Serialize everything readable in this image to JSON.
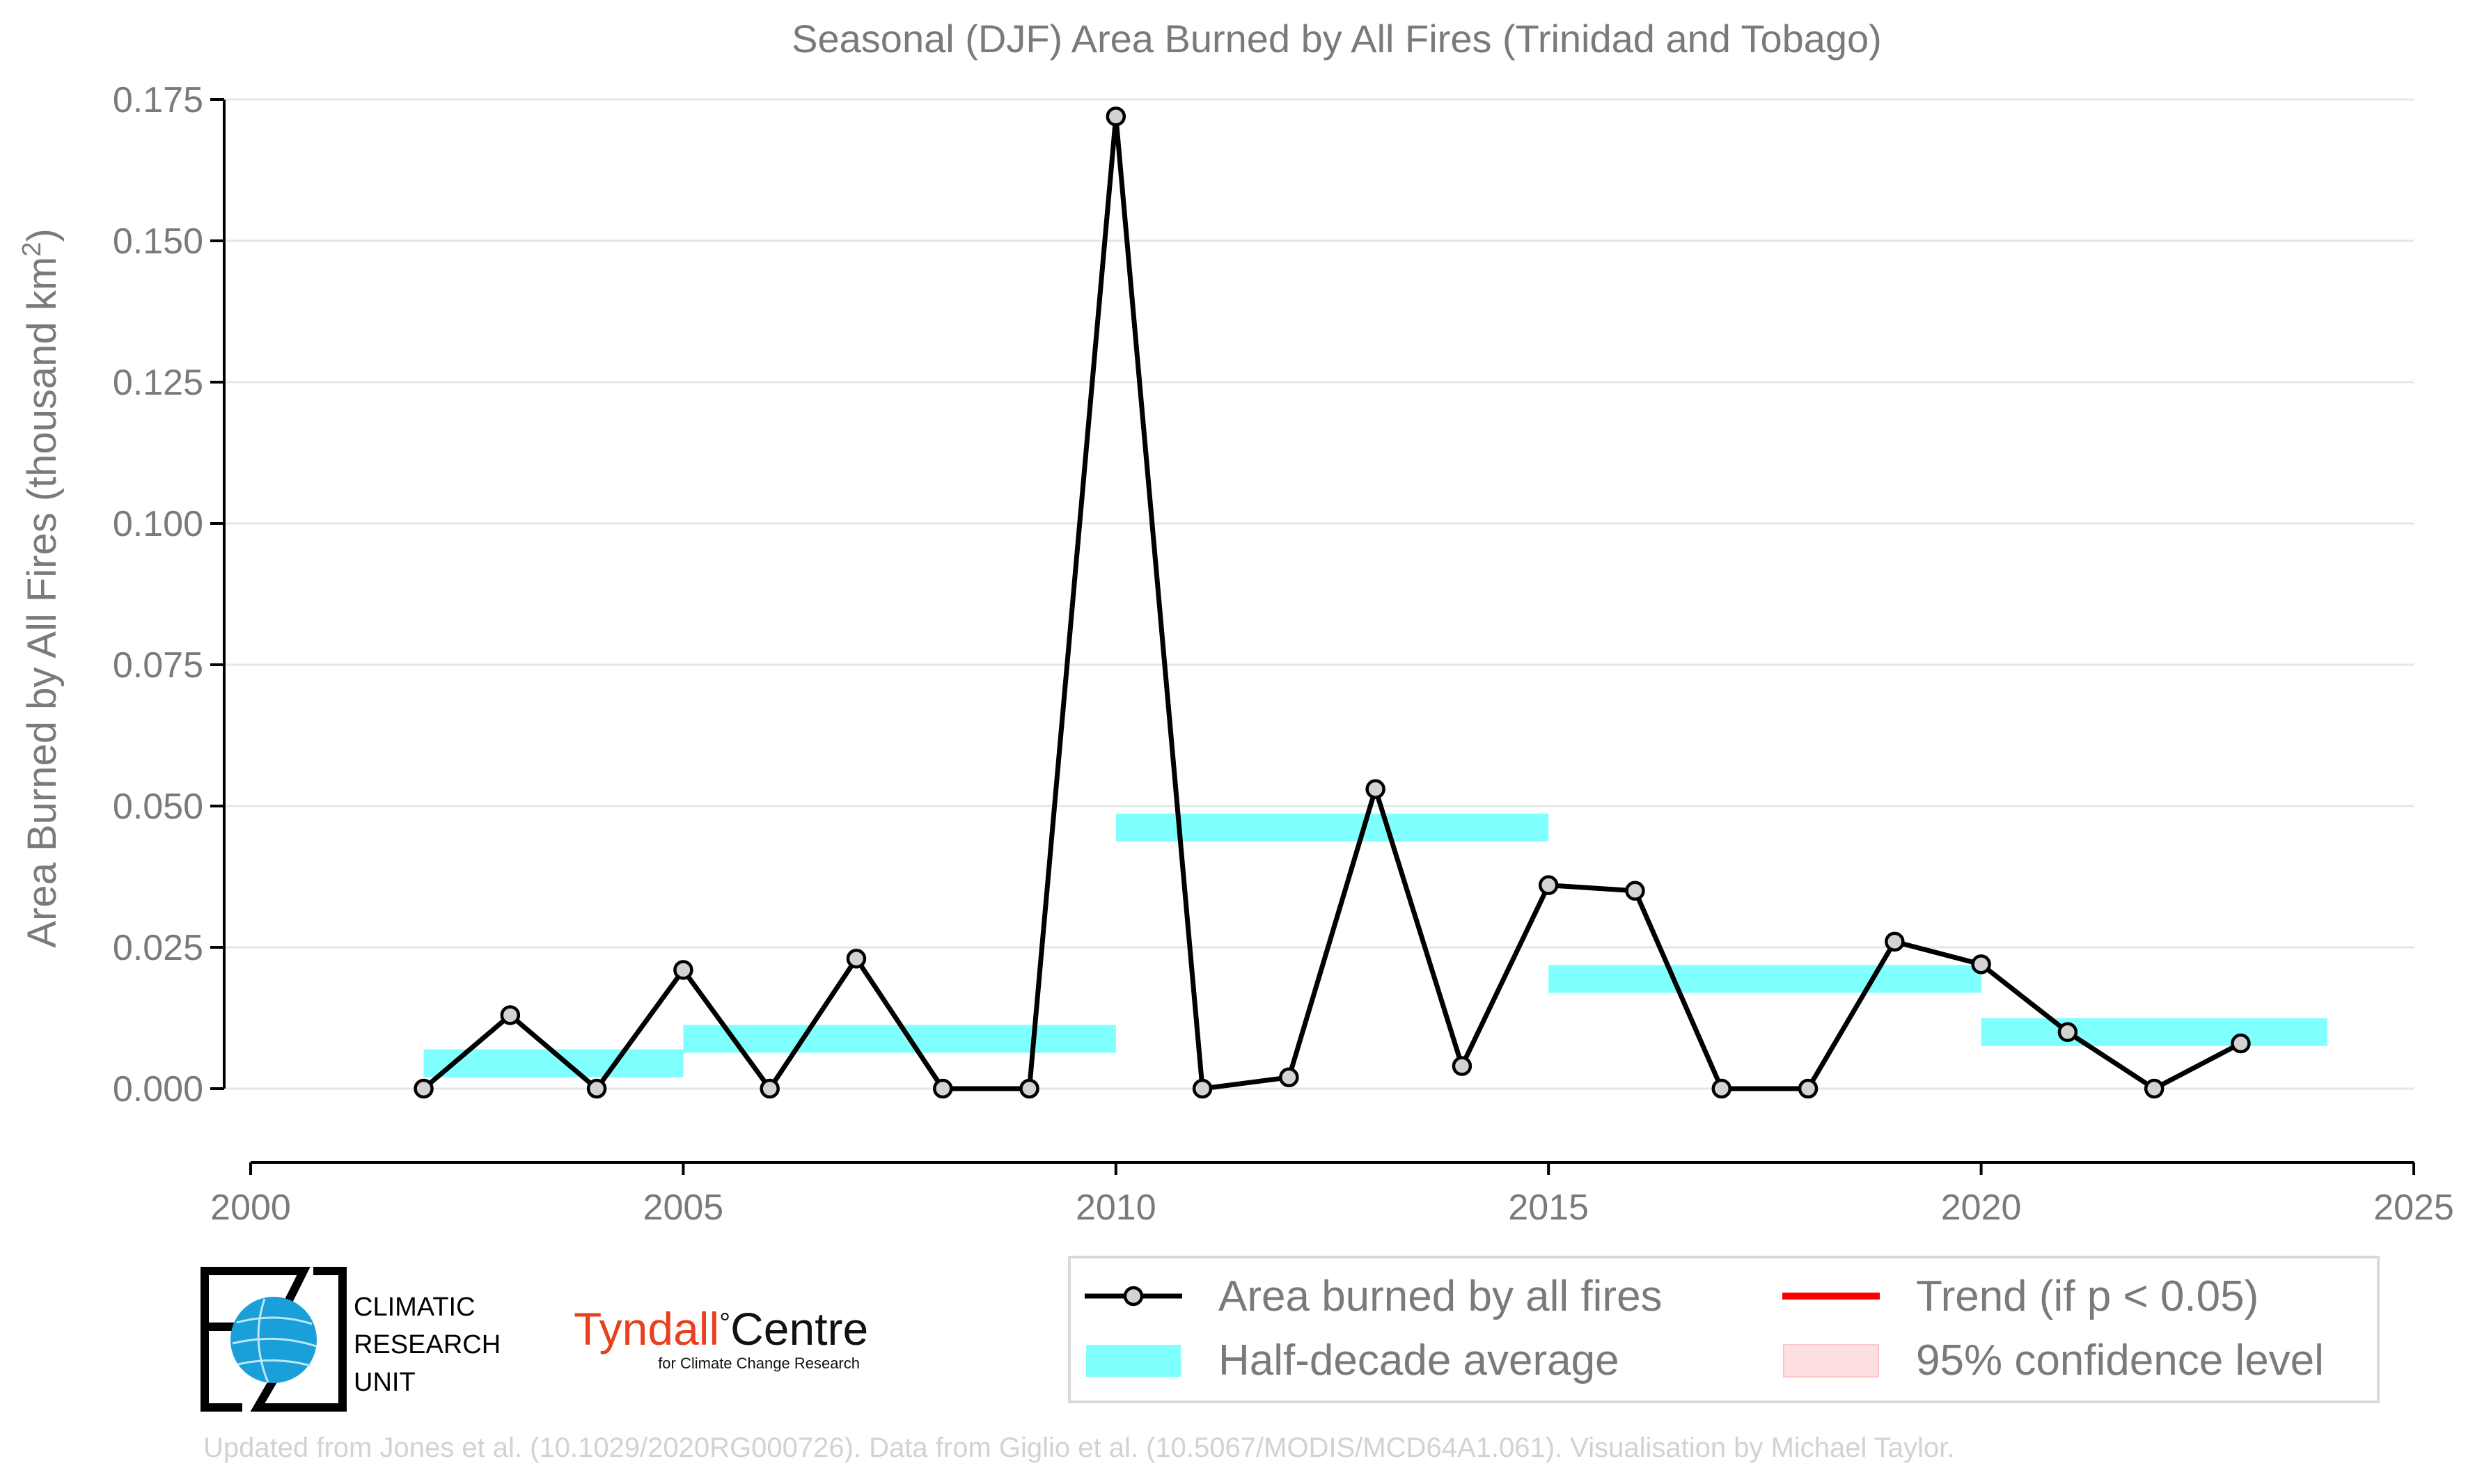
{
  "chart_data": {
    "type": "line",
    "title": "Seasonal (DJF) Area Burned by All Fires (Trinidad and Tobago)",
    "xlabel": "",
    "ylabel_main": "Area Burned by All Fires (thousand km",
    "ylabel_sup": "2",
    "ylabel_close": ")",
    "xlim": [
      2000,
      2025
    ],
    "ylim": [
      -0.013,
      0.177
    ],
    "xticks": [
      2000,
      2005,
      2010,
      2015,
      2020,
      2025
    ],
    "yticks": [
      0.0,
      0.025,
      0.05,
      0.075,
      0.1,
      0.125,
      0.15,
      0.175
    ],
    "ytick_labels": [
      "0.000",
      "0.025",
      "0.050",
      "0.075",
      "0.100",
      "0.125",
      "0.150",
      "0.175"
    ],
    "grid": "horizontal",
    "legend_placement": "bottom-right",
    "series": [
      {
        "name": "Area burned by all fires",
        "color": "#000000",
        "marker_fill": "#d3d3d3",
        "x": [
          2002,
          2003,
          2004,
          2005,
          2006,
          2007,
          2008,
          2009,
          2010,
          2011,
          2012,
          2013,
          2014,
          2015,
          2016,
          2017,
          2018,
          2019,
          2020,
          2021,
          2022,
          2023
        ],
        "y": [
          0.0,
          0.013,
          0.0,
          0.021,
          0.0,
          0.023,
          0.0,
          0.0,
          0.172,
          0.0,
          0.002,
          0.053,
          0.004,
          0.036,
          0.035,
          0.0,
          0.0,
          0.026,
          0.022,
          0.01,
          0.0,
          0.008
        ]
      },
      {
        "name": "Half-decade average",
        "color": "#80ffff",
        "segments": [
          {
            "x0": 2002,
            "x1": 2005,
            "y": 0.0045
          },
          {
            "x0": 2005,
            "x1": 2010,
            "y": 0.0088
          },
          {
            "x0": 2010,
            "x1": 2015,
            "y": 0.0462
          },
          {
            "x0": 2015,
            "x1": 2020,
            "y": 0.0194
          },
          {
            "x0": 2020,
            "x1": 2024,
            "y": 0.01
          }
        ]
      }
    ],
    "legend": [
      {
        "label": "Area burned by all fires",
        "kind": "line-marker",
        "color": "#000000"
      },
      {
        "label": "Trend (if p < 0.05)",
        "kind": "line",
        "color": "#ff0000"
      },
      {
        "label": "Half-decade average",
        "kind": "band",
        "color": "#80ffff"
      },
      {
        "label": "95% confidence level",
        "kind": "band",
        "color": "#ffe0e0"
      }
    ]
  },
  "logos": {
    "cru_lines": [
      "CLIMATIC",
      "RESEARCH",
      "UNIT"
    ],
    "tyndall_red": "Tyndall",
    "tyndall_degree": "°",
    "tyndall_black": "Centre",
    "tyndall_sub": "for Climate Change Research"
  },
  "credit": "Updated from Jones et al. (10.1029/2020RG000726). Data from Giglio et al. (10.5067/MODIS/MCD64A1.061). Visualisation by Michael Taylor."
}
